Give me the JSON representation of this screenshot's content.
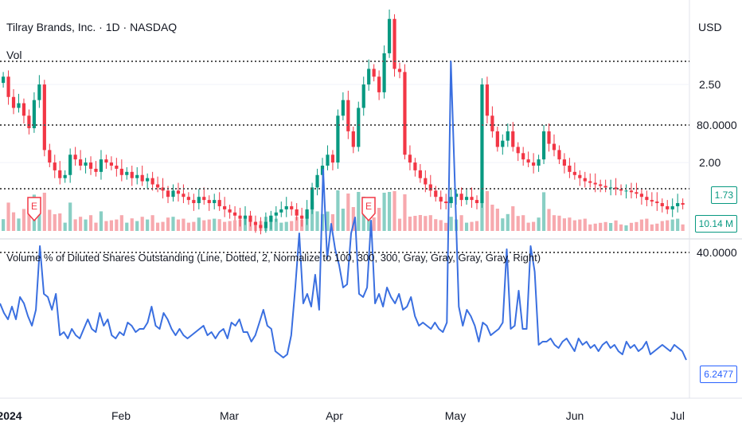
{
  "header": {
    "symbol_line": "Tilray Brands, Inc. · 1D · NASDAQ",
    "vol_label": "Vol",
    "currency": "USD"
  },
  "indicator": {
    "title": "Volume % of Diluted Shares Outstanding (Line, Dotted, 2, Normalize to 100, 300, 300, Gray, Gray, Gray, Gray, Right)"
  },
  "earnings_marker": "E",
  "colors": {
    "up": "#089981",
    "down": "#f23645",
    "up_vol": "#89cfc4",
    "down_vol": "#f7a9ae",
    "line": "#3a6fe0",
    "grid": "#f0f3fa",
    "level_line": "#555555"
  },
  "chart_data": [
    {
      "type": "candlestick",
      "price_axis_ticks": [
        "2.50",
        "2.00"
      ],
      "x_tick_labels": [
        "2024",
        "Feb",
        "Mar",
        "Apr",
        "May",
        "Jun",
        "Jul"
      ],
      "last_price": "1.73",
      "last_volume": "10.14 M",
      "approx_close_series": [
        2.55,
        2.42,
        2.35,
        2.38,
        2.3,
        2.22,
        2.4,
        2.5,
        2.08,
        2.0,
        1.95,
        1.9,
        1.92,
        2.05,
        2.02,
        1.98,
        2.0,
        1.96,
        1.94,
        2.02,
        2.0,
        1.98,
        1.96,
        1.92,
        1.94,
        1.9,
        1.92,
        1.88,
        1.9,
        1.86,
        1.84,
        1.82,
        1.78,
        1.82,
        1.8,
        1.78,
        1.76,
        1.74,
        1.78,
        1.76,
        1.74,
        1.76,
        1.72,
        1.7,
        1.68,
        1.66,
        1.64,
        1.66,
        1.62,
        1.6,
        1.58,
        1.62,
        1.66,
        1.68,
        1.7,
        1.72,
        1.7,
        1.66,
        1.64,
        1.7,
        1.84,
        1.92,
        1.98,
        2.05,
        2.0,
        2.3,
        2.4,
        2.2,
        2.1,
        2.35,
        2.5,
        2.6,
        2.55,
        2.45,
        2.7,
        2.92,
        2.6,
        2.58,
        2.05,
        2.0,
        1.95,
        1.9,
        1.86,
        1.82,
        1.78,
        1.75,
        1.74,
        1.78,
        1.8,
        1.76,
        1.78,
        1.76,
        1.74,
        2.5,
        2.3,
        2.2,
        2.1,
        2.14,
        2.2,
        2.1,
        2.06,
        2.02,
        2.0,
        1.98,
        2.02,
        2.2,
        2.12,
        2.08,
        2.02,
        1.98,
        1.94,
        1.92,
        1.9,
        1.88,
        1.87,
        1.86,
        1.85,
        1.84,
        1.84,
        1.83,
        1.82,
        1.82,
        1.81,
        1.8,
        1.78,
        1.76,
        1.75,
        1.74,
        1.72,
        1.7,
        1.72,
        1.74,
        1.73
      ]
    },
    {
      "type": "line",
      "name": "Volume % of Diluted Shares Outstanding",
      "y_tick_labels": [
        "80.0000",
        "40.0000"
      ],
      "level_lines": [
        100,
        80,
        60,
        40
      ],
      "last_value": "6.2477",
      "values": [
        24,
        21,
        19,
        23,
        19,
        26,
        24,
        20,
        17,
        22,
        42,
        27,
        26,
        22,
        27,
        14,
        15,
        13,
        16,
        14,
        13,
        16,
        19,
        16,
        15,
        21,
        17,
        19,
        14,
        13,
        15,
        14,
        18,
        17,
        15,
        16,
        16,
        18,
        23,
        17,
        16,
        21,
        19,
        16,
        14,
        16,
        14,
        13,
        14,
        15,
        16,
        17,
        14,
        15,
        13,
        15,
        16,
        13,
        18,
        17,
        19,
        15,
        15,
        12,
        14,
        18,
        22,
        17,
        16,
        9,
        8,
        7,
        8,
        14,
        29,
        46,
        24,
        27,
        23,
        33,
        22,
        66,
        38,
        49,
        41,
        36,
        29,
        30,
        46,
        51,
        27,
        26,
        29,
        50,
        24,
        27,
        23,
        29,
        26,
        24,
        27,
        22,
        23,
        26,
        20,
        17,
        18,
        17,
        16,
        18,
        16,
        15,
        18,
        100,
        62,
        23,
        17,
        22,
        20,
        17,
        12,
        18,
        17,
        14,
        15,
        16,
        18,
        41,
        16,
        17,
        28,
        16,
        16,
        42,
        34,
        11,
        12,
        12,
        13,
        11,
        10,
        12,
        13,
        11,
        9,
        13,
        11,
        12,
        10,
        11,
        9,
        11,
        12,
        10,
        11,
        9,
        8,
        12,
        10,
        11,
        9,
        10,
        12,
        8,
        9,
        10,
        11,
        10,
        9,
        11,
        10,
        9,
        6.2477
      ]
    }
  ]
}
